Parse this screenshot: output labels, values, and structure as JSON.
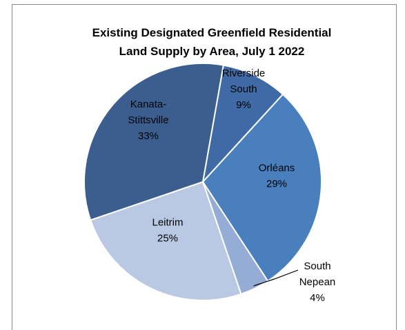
{
  "chart_data": {
    "type": "pie",
    "title": "Existing Designated Greenfield Residential Land Supply by Area, July 1 2022",
    "title_lines": [
      "Existing Designated Greenfield Residential",
      "Land Supply by Area, July 1 2022"
    ],
    "start_angle_deg": 10,
    "slices": [
      {
        "label": "Riverside South",
        "label_lines": [
          "Riverside",
          "South"
        ],
        "value": 9,
        "percent_label": "9%",
        "color": "#3f6aa6"
      },
      {
        "label": "Orléans",
        "label_lines": [
          "Orléans"
        ],
        "value": 29,
        "percent_label": "29%",
        "color": "#4a7fbe"
      },
      {
        "label": "South Nepean",
        "label_lines": [
          "South",
          "Nepean"
        ],
        "value": 4,
        "percent_label": "4%",
        "color": "#95acd5"
      },
      {
        "label": "Leitrim",
        "label_lines": [
          "Leitrim"
        ],
        "value": 25,
        "percent_label": "25%",
        "color": "#b9c8e3"
      },
      {
        "label": "Kanata-Stittsville",
        "label_lines": [
          "Kanata-",
          "Stittsville"
        ],
        "value": 33,
        "percent_label": "33%",
        "color": "#3b5e8f"
      }
    ]
  }
}
